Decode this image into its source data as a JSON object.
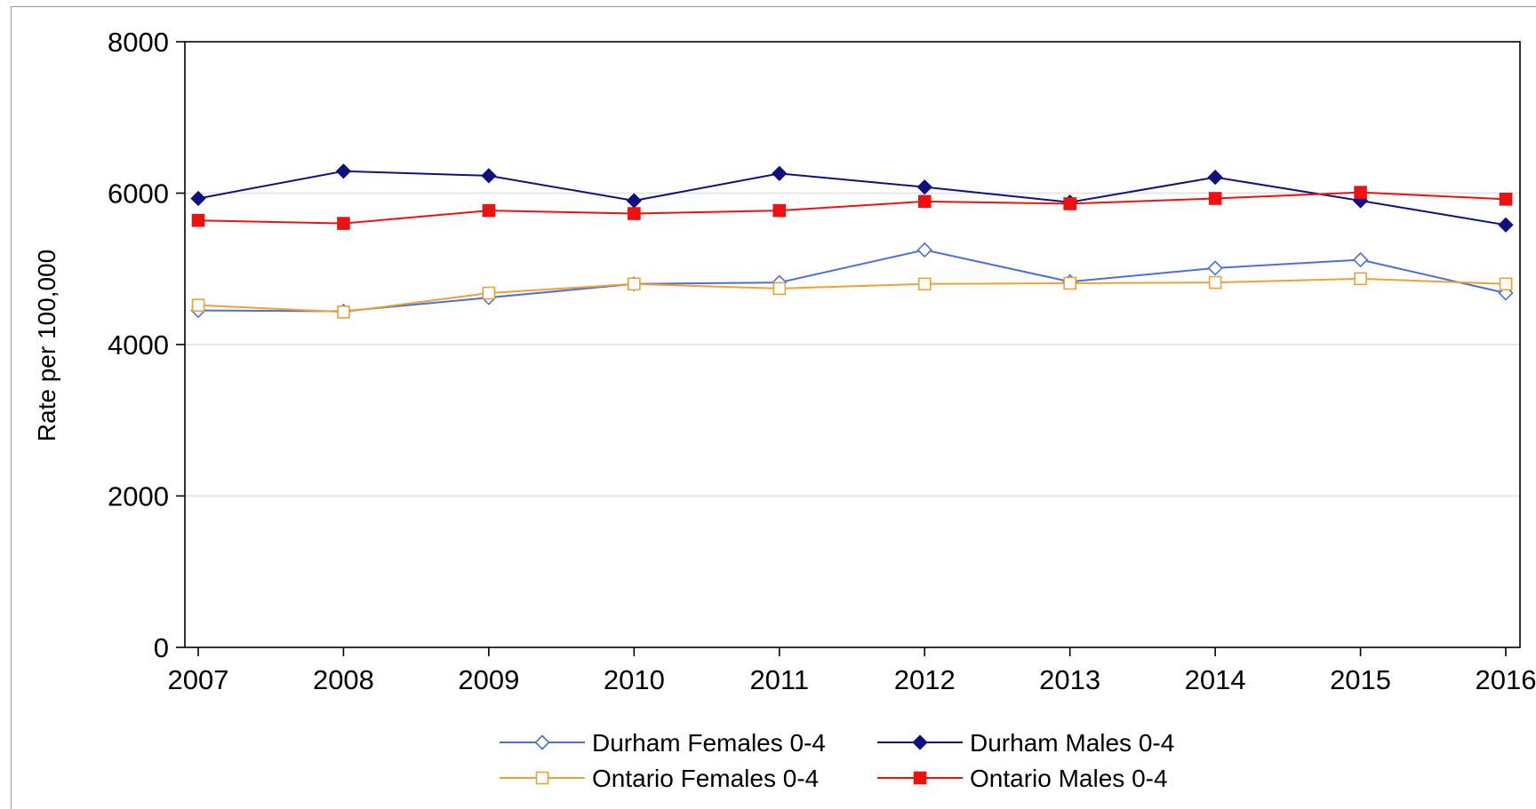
{
  "chart_data": {
    "type": "line",
    "title": "",
    "xlabel": "",
    "ylabel": "Rate per 100,000",
    "x": [
      2007,
      2008,
      2009,
      2010,
      2011,
      2012,
      2013,
      2014,
      2015,
      2016
    ],
    "x_tick_labels": [
      "2007",
      "2008",
      "2009",
      "2010",
      "2011",
      "2012",
      "2013",
      "2014",
      "2015",
      "2016"
    ],
    "ylim": [
      0,
      8000
    ],
    "y_ticks": [
      0,
      2000,
      4000,
      6000,
      8000
    ],
    "y_tick_labels": [
      "0",
      "2000",
      "4000",
      "6000",
      "8000"
    ],
    "grid": "horizontal",
    "legend_position": "bottom",
    "series": [
      {
        "name": "Durham Females 0-4",
        "color": "#4a6ee0",
        "marker": "diamond-open",
        "values": [
          4450,
          4440,
          4620,
          4800,
          4820,
          5250,
          4830,
          5010,
          5120,
          4680
        ]
      },
      {
        "name": "Durham Males 0-4",
        "color": "#101080",
        "marker": "diamond-filled",
        "values": [
          5930,
          6290,
          6230,
          5900,
          6260,
          6080,
          5880,
          6210,
          5900,
          5580
        ]
      },
      {
        "name": "Ontario Females 0-4",
        "color": "#f0a030",
        "marker": "square-open",
        "values": [
          4520,
          4430,
          4680,
          4800,
          4740,
          4800,
          4810,
          4820,
          4870,
          4800
        ]
      },
      {
        "name": "Ontario Males 0-4",
        "color": "#ee1111",
        "marker": "square-filled",
        "values": [
          5640,
          5600,
          5770,
          5730,
          5770,
          5890,
          5860,
          5930,
          6010,
          5920
        ]
      }
    ]
  }
}
